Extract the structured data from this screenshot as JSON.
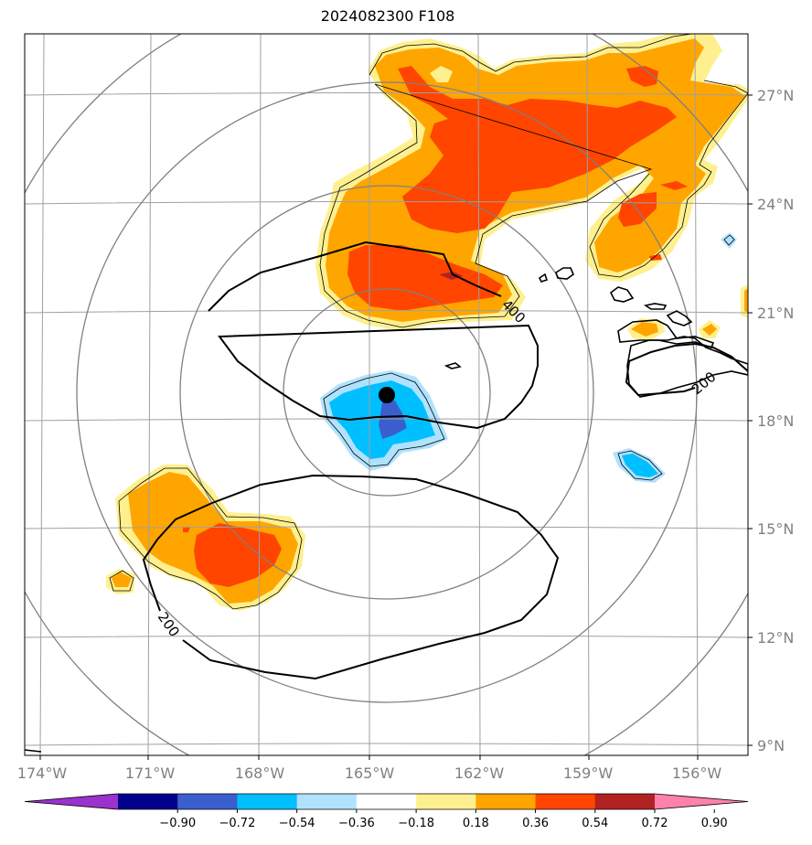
{
  "title": "2024082300 F108",
  "lon_labels": [
    "174°W",
    "171°W",
    "168°W",
    "165°W",
    "162°W",
    "159°W",
    "156°W"
  ],
  "lat_labels": [
    "27°N",
    "24°N",
    "21°N",
    "18°N",
    "15°N",
    "12°N",
    "9°N"
  ],
  "contour_labels": [
    "400",
    "200",
    "200"
  ],
  "colorbar": {
    "ticks": [
      "−0.90",
      "−0.72",
      "−0.54",
      "−0.36",
      "−0.18",
      "0.18",
      "0.36",
      "0.54",
      "0.72",
      "0.90"
    ],
    "colors": [
      "#9a32cd",
      "#00008b",
      "#3a5fcd",
      "#00bfff",
      "#b0e2ff",
      "#ffffff",
      "#fff08f",
      "#ffa500",
      "#ff4500",
      "#b22222",
      "#ff82ab"
    ]
  },
  "colors": {
    "grid": "#a0a0a0",
    "rings": "#808080",
    "coast": "#000000",
    "center_marker": "#000000"
  }
}
